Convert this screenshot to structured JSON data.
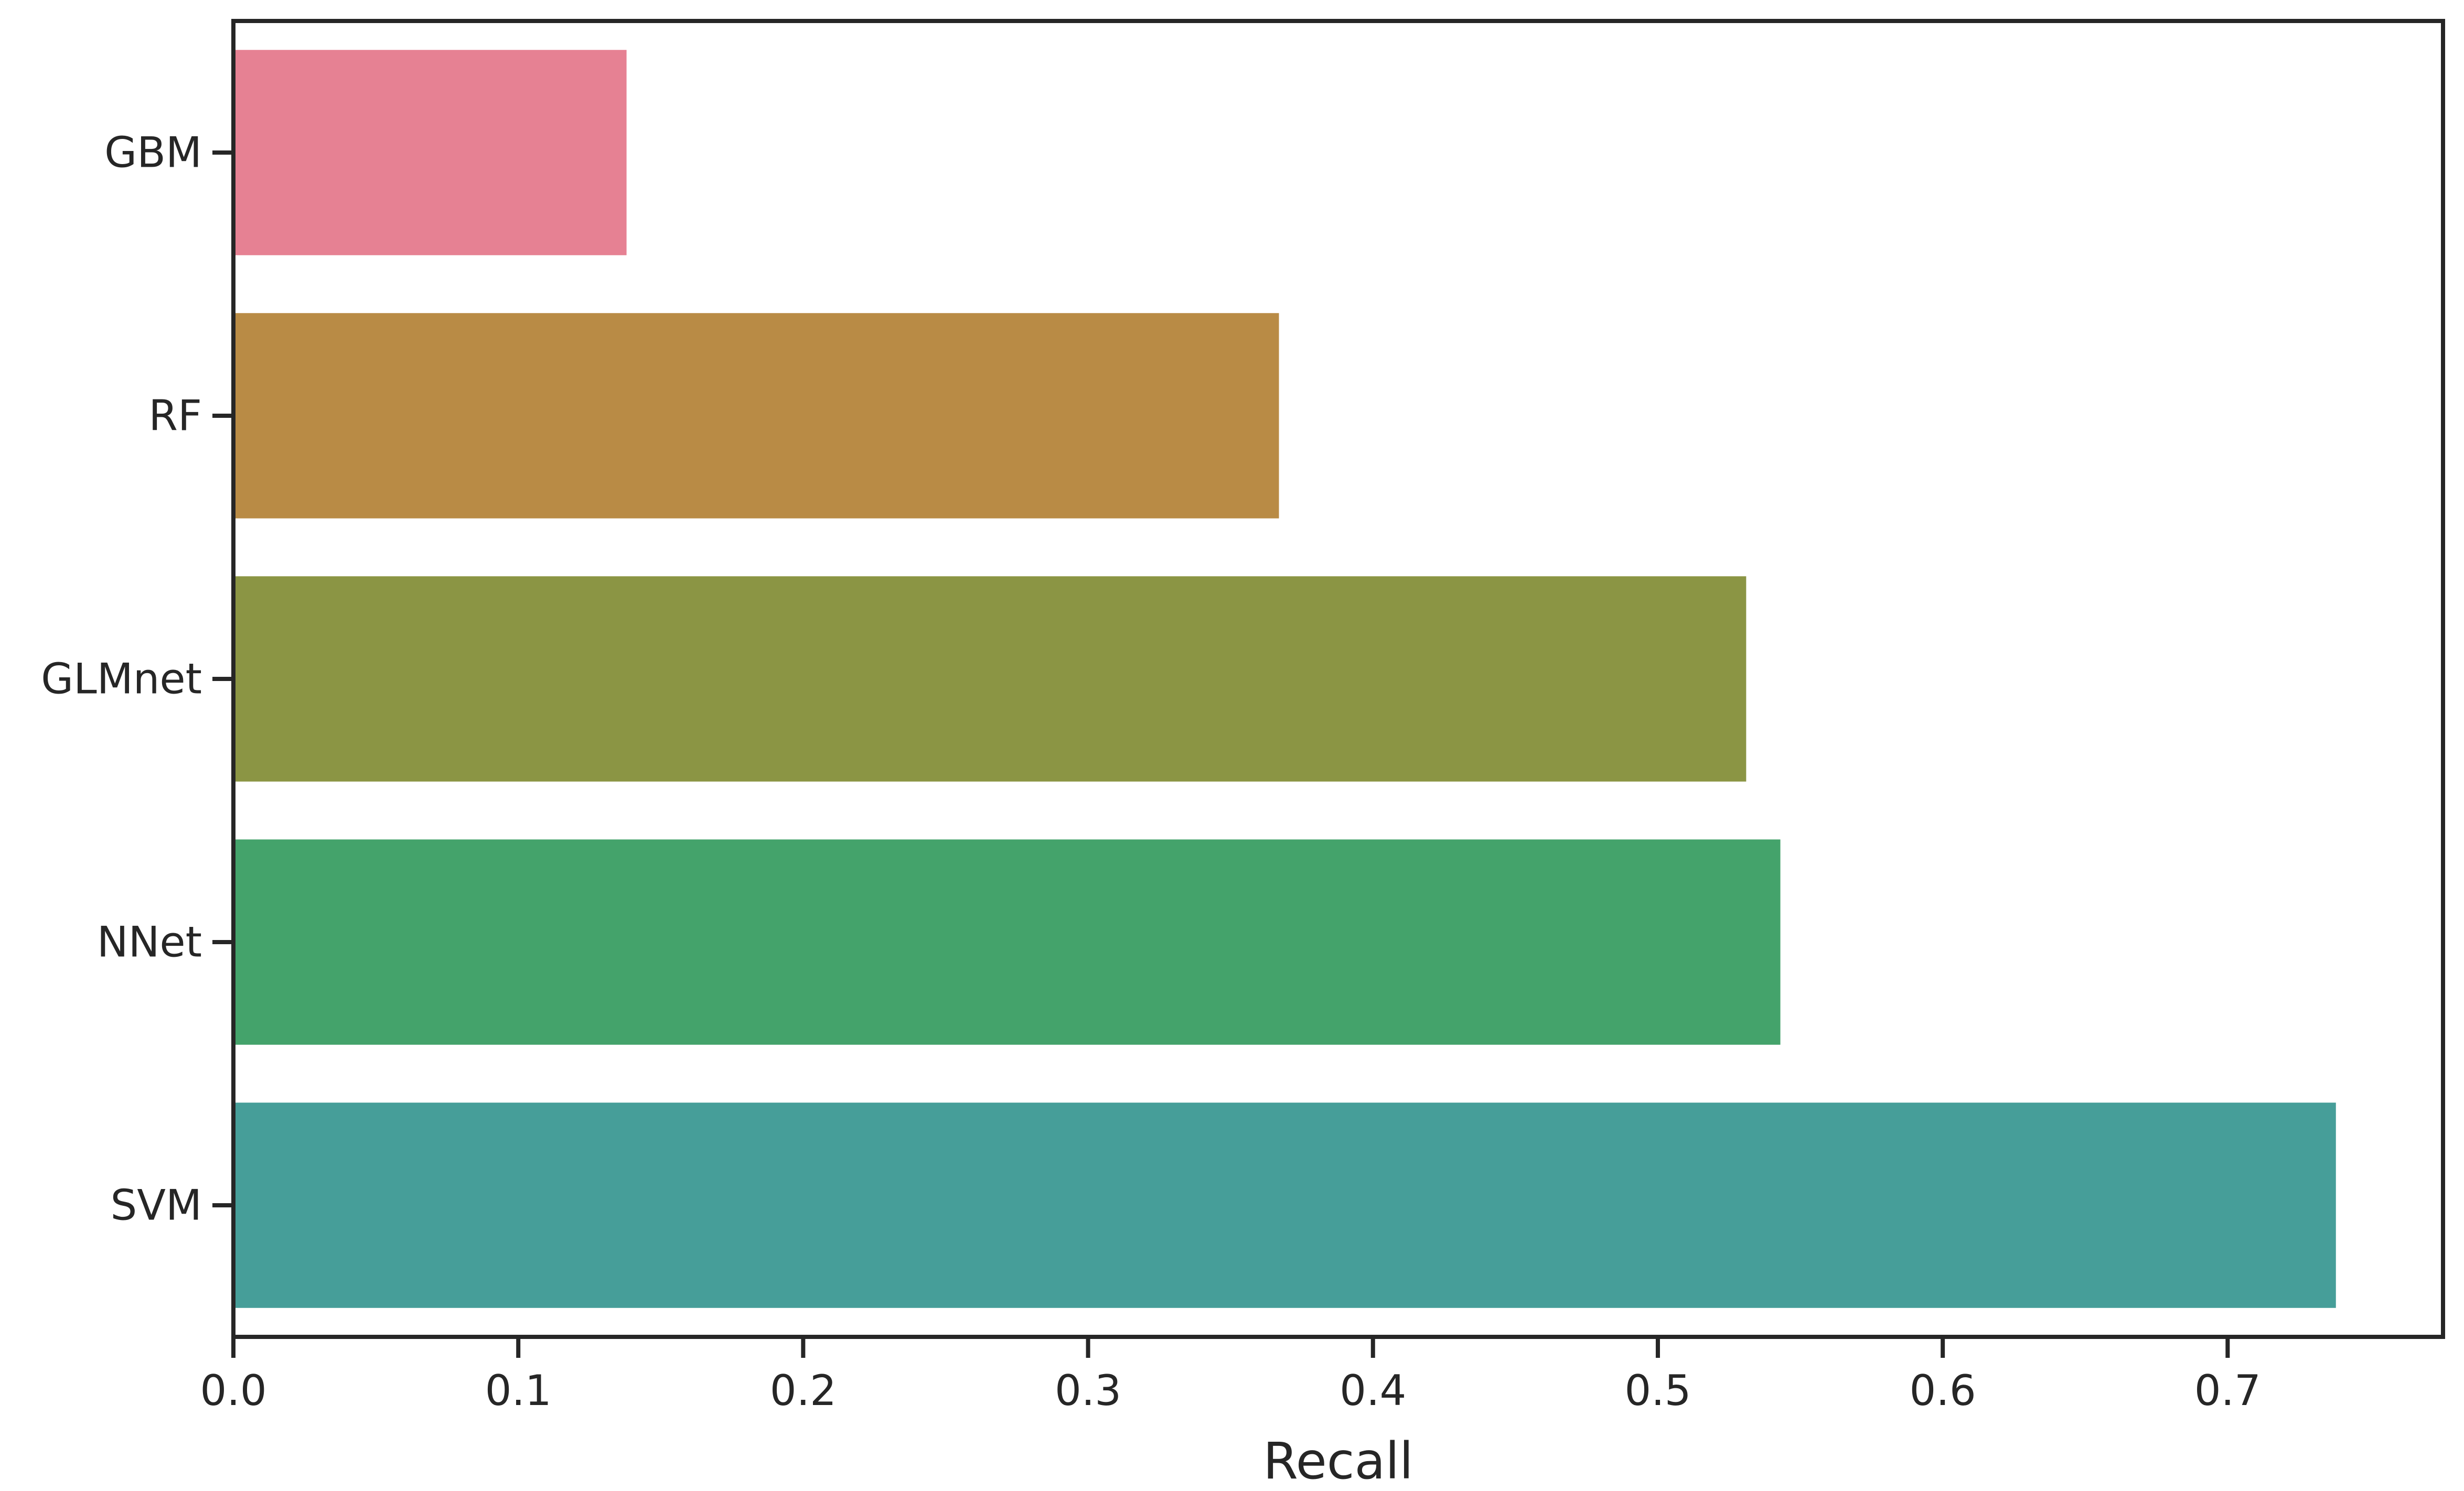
{
  "chart_data": {
    "type": "bar",
    "orientation": "horizontal",
    "categories": [
      "GBM",
      "RF",
      "GLMnet",
      "NNet",
      "SVM"
    ],
    "values": [
      0.138,
      0.367,
      0.531,
      0.543,
      0.738
    ],
    "colors": [
      "#e68193",
      "#b98b45",
      "#8b9544",
      "#44a36b",
      "#469e99"
    ],
    "title": "",
    "xlabel": "Recall",
    "ylabel": "",
    "xlim": [
      0.0,
      0.7756
    ],
    "xticks": [
      0.0,
      0.1,
      0.2,
      0.3,
      0.4,
      0.5,
      0.6,
      0.7
    ],
    "xtick_labels": [
      "0.0",
      "0.1",
      "0.2",
      "0.3",
      "0.4",
      "0.5",
      "0.6",
      "0.7"
    ],
    "grid": false,
    "legend": "none"
  }
}
